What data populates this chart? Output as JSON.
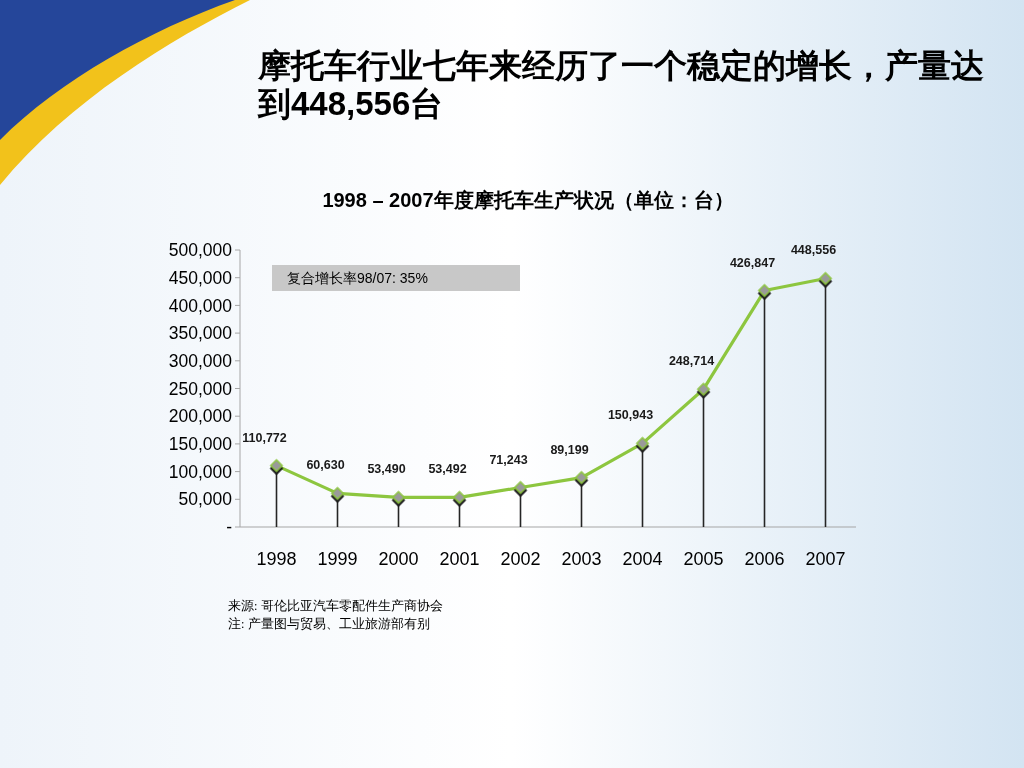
{
  "chart_data": {
    "type": "line",
    "title": "摩托车行业七年来经历了一个稳定的增长，产量达到448,556台",
    "subtitle": "1998 – 2007年度摩托车生产状况（单位：台）",
    "categories": [
      "1998",
      "1999",
      "2000",
      "2001",
      "2002",
      "2003",
      "2004",
      "2005",
      "2006",
      "2007"
    ],
    "series": [
      {
        "color": "#8dc63f",
        "values": [
          110772,
          60630,
          53490,
          53492,
          71243,
          89199,
          150943,
          248714,
          426847,
          448556
        ],
        "value_labels": [
          "110,772",
          "60,630",
          "53,490",
          "53,492",
          "71,243",
          "89,199",
          "150,943",
          "248,714",
          "426,847",
          "448,556"
        ]
      },
      {
        "type": "lollipop",
        "color": "#9a9a9a",
        "marker": "diamond",
        "values": [
          110772,
          60630,
          53490,
          53492,
          71243,
          89199,
          150943,
          248714,
          426847,
          448556
        ]
      }
    ],
    "ylim": [
      0,
      500000
    ],
    "yticks": [
      {
        "value": 0,
        "label": "-"
      },
      {
        "value": 50000,
        "label": "50,000"
      },
      {
        "value": 100000,
        "label": "100,000"
      },
      {
        "value": 150000,
        "label": "150,000"
      },
      {
        "value": 200000,
        "label": "200,000"
      },
      {
        "value": 250000,
        "label": "250,000"
      },
      {
        "value": 300000,
        "label": "300,000"
      },
      {
        "value": 350000,
        "label": "350,000"
      },
      {
        "value": 400000,
        "label": "400,000"
      },
      {
        "value": 450000,
        "label": "450,000"
      },
      {
        "value": 500000,
        "label": "500,000"
      }
    ],
    "annotations": [
      "复合增长率98/07: 35%",
      "来源: 哥伦比亚汽车零配件生产商协会",
      "注: 产量图与贸易、工业旅游部有别"
    ]
  }
}
